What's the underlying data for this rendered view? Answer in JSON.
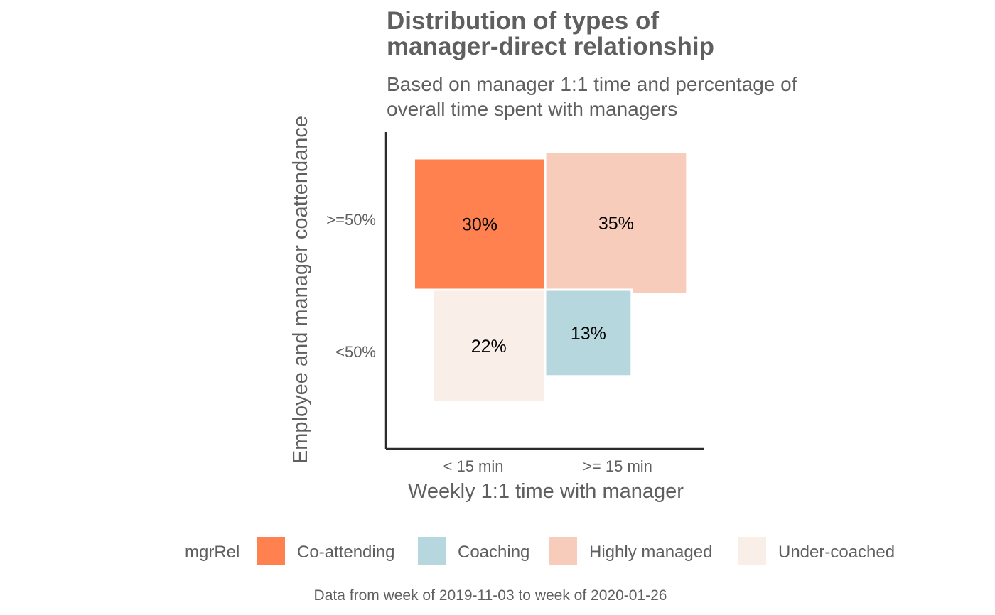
{
  "chart_data": {
    "type": "marimekko",
    "title": "Distribution of types of\nmanager-direct relationship",
    "subtitle": "Based on manager 1:1 time and percentage of\noverall time spent with managers",
    "xlabel": "Weekly 1:1 time with manager",
    "ylabel": "Employee and manager coattendance",
    "x_categories": [
      "< 15 min",
      ">= 15 min"
    ],
    "y_categories": [
      ">=50%",
      "<50%"
    ],
    "cells": [
      {
        "x": "< 15 min",
        "y": ">=50%",
        "group": "Co-attending",
        "value": 30,
        "label": "30%"
      },
      {
        "x": ">= 15 min",
        "y": ">=50%",
        "group": "Highly managed",
        "value": 35,
        "label": "35%"
      },
      {
        "x": "< 15 min",
        "y": "<50%",
        "group": "Under-coached",
        "value": 22,
        "label": "22%"
      },
      {
        "x": ">= 15 min",
        "y": "<50%",
        "group": "Coaching",
        "value": 13,
        "label": "13%"
      }
    ],
    "legend": {
      "title": "mgrRel",
      "position": "bottom",
      "items": [
        {
          "name": "Co-attending",
          "color": "#FF8150"
        },
        {
          "name": "Coaching",
          "color": "#B6D7DE"
        },
        {
          "name": "Highly managed",
          "color": "#F8CCBB"
        },
        {
          "name": "Under-coached",
          "color": "#FAEEE8"
        }
      ]
    },
    "caption": "Data from week of 2019-11-03 to week of 2020-01-26",
    "grid": false
  }
}
